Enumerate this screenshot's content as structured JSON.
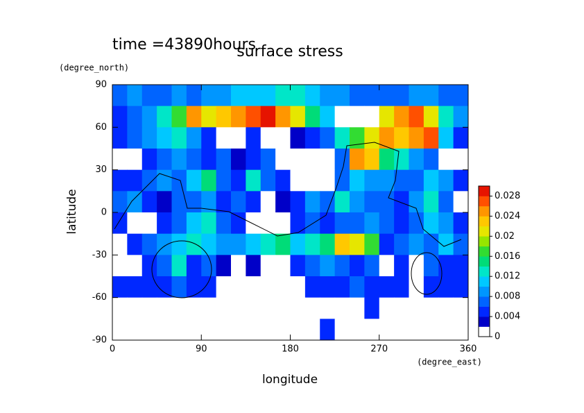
{
  "chart_data": {
    "type": "heatmap",
    "title": "time =43890hours",
    "subtitle": "surface stress",
    "x_label": "longitude",
    "y_label": "latitude",
    "x_unit": "(degree_east)",
    "y_unit": "(degree_north)",
    "xlim": [
      0,
      360
    ],
    "xticks": [
      0,
      90,
      180,
      270,
      360
    ],
    "ylim": [
      -90,
      90
    ],
    "yticks": [
      -90,
      -60,
      -30,
      0,
      30,
      60,
      90
    ],
    "x": [
      7.5,
      22.5,
      37.5,
      52.5,
      67.5,
      82.5,
      97.5,
      112.5,
      127.5,
      142.5,
      157.5,
      172.5,
      187.5,
      202.5,
      217.5,
      232.5,
      247.5,
      262.5,
      277.5,
      292.5,
      307.5,
      322.5,
      337.5,
      352.5
    ],
    "y": [
      82.5,
      67.5,
      52.5,
      37.5,
      22.5,
      7.5,
      -7.5,
      -22.5,
      -37.5,
      -52.5,
      -67.5,
      -82.5
    ],
    "values": [
      [
        0.006,
        0.008,
        0.006,
        0.006,
        0.008,
        0.006,
        0.008,
        0.008,
        0.01,
        0.01,
        0.01,
        0.012,
        0.012,
        0.01,
        0.008,
        0.008,
        0.006,
        0.006,
        0.006,
        0.006,
        0.008,
        0.008,
        0.006,
        0.006
      ],
      [
        0.004,
        0.006,
        0.008,
        0.012,
        0.016,
        0.024,
        0.02,
        0.022,
        0.024,
        0.026,
        0.028,
        0.024,
        0.02,
        0.014,
        0.01,
        0.001,
        0.001,
        0.001,
        0.02,
        0.024,
        0.026,
        0.02,
        0.012,
        0.008
      ],
      [
        0.004,
        0.006,
        0.008,
        0.01,
        0.012,
        0.008,
        0.004,
        0.001,
        0.001,
        0.004,
        0.001,
        0.001,
        0.002,
        0.004,
        0.006,
        0.012,
        0.016,
        0.02,
        0.024,
        0.022,
        0.024,
        0.026,
        0.01,
        0.004
      ],
      [
        0.001,
        0.001,
        0.004,
        0.006,
        0.008,
        0.006,
        0.004,
        0.006,
        0.002,
        0.004,
        0.006,
        0.001,
        0.001,
        0.001,
        0.001,
        0.006,
        0.024,
        0.022,
        0.014,
        0.012,
        0.008,
        0.006,
        0.001,
        0.001
      ],
      [
        0.004,
        0.004,
        0.006,
        0.008,
        0.006,
        0.01,
        0.014,
        0.006,
        0.004,
        0.012,
        0.006,
        0.004,
        0.001,
        0.001,
        0.001,
        0.006,
        0.01,
        0.008,
        0.008,
        0.006,
        0.006,
        0.01,
        0.008,
        0.004
      ],
      [
        0.006,
        0.008,
        0.004,
        0.002,
        0.006,
        0.006,
        0.008,
        0.004,
        0.006,
        0.004,
        0.001,
        0.002,
        0.004,
        0.008,
        0.006,
        0.012,
        0.008,
        0.006,
        0.006,
        0.004,
        0.008,
        0.012,
        0.006,
        0.001
      ],
      [
        0.004,
        0.001,
        0.001,
        0.004,
        0.006,
        0.01,
        0.012,
        0.006,
        0.004,
        0.001,
        0.001,
        0.001,
        0.004,
        0.006,
        0.004,
        0.006,
        0.006,
        0.008,
        0.006,
        0.004,
        0.006,
        0.01,
        0.008,
        0.004
      ],
      [
        0.001,
        0.004,
        0.006,
        0.008,
        0.01,
        0.012,
        0.01,
        0.008,
        0.008,
        0.01,
        0.012,
        0.014,
        0.01,
        0.012,
        0.014,
        0.022,
        0.02,
        0.016,
        0.004,
        0.006,
        0.008,
        0.006,
        0.01,
        0.006
      ],
      [
        0.001,
        0.001,
        0.004,
        0.006,
        0.012,
        0.004,
        0.006,
        0.002,
        0.001,
        0.002,
        0.001,
        0.001,
        0.004,
        0.006,
        0.008,
        0.006,
        0.004,
        0.006,
        0.001,
        0.004,
        0.001,
        0.006,
        0.004,
        0.004
      ],
      [
        0.004,
        0.004,
        0.004,
        0.004,
        0.006,
        0.004,
        0.004,
        0.001,
        0.001,
        0.001,
        0.001,
        0.001,
        0.001,
        0.004,
        0.004,
        0.004,
        0.006,
        0.004,
        0.004,
        0.004,
        0.001,
        0.004,
        0.004,
        0.004
      ],
      [
        0.001,
        0.001,
        0.001,
        0.001,
        0.001,
        0.001,
        0.001,
        0.001,
        0.001,
        0.001,
        0.001,
        0.001,
        0.001,
        0.001,
        0.001,
        0.001,
        0.001,
        0.004,
        0.001,
        0.001,
        0.001,
        0.001,
        0.001,
        0.001
      ],
      [
        0.001,
        0.001,
        0.001,
        0.001,
        0.001,
        0.001,
        0.001,
        0.001,
        0.001,
        0.001,
        0.001,
        0.001,
        0.001,
        0.001,
        0.004,
        0.001,
        0.001,
        0.001,
        0.001,
        0.001,
        0.001,
        0.001,
        0.001,
        0.001
      ]
    ],
    "clim": [
      0,
      0.03
    ],
    "colorbar_ticks": [
      0,
      0.004,
      0.008,
      0.012,
      0.016,
      0.02,
      0.024,
      0.028
    ],
    "colors": [
      "#ffffff",
      "#0000c8",
      "#0028ff",
      "#0064ff",
      "#0096ff",
      "#00c8ff",
      "#00e6c8",
      "#00dc78",
      "#32dc32",
      "#96e600",
      "#e6e600",
      "#ffc800",
      "#ff9600",
      "#ff5000",
      "#e61400"
    ]
  }
}
